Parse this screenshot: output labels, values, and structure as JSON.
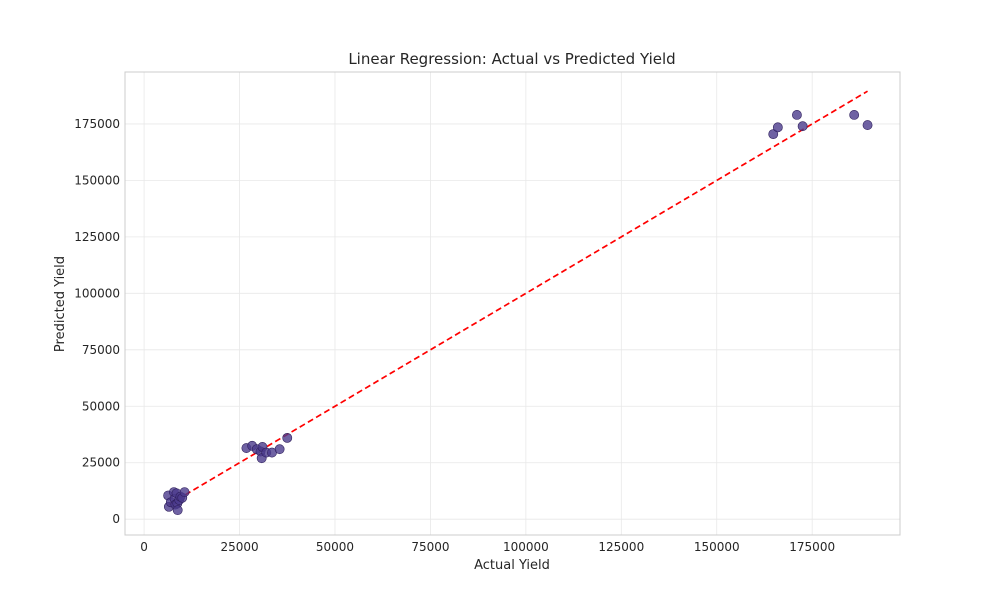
{
  "chart_data": {
    "type": "scatter",
    "title": "Linear Regression: Actual vs Predicted Yield",
    "xlabel": "Actual Yield",
    "ylabel": "Predicted Yield",
    "xlim": [
      -5000,
      198000
    ],
    "ylim": [
      -7000,
      198000
    ],
    "xticks": [
      0,
      25000,
      50000,
      75000,
      100000,
      125000,
      150000,
      175000
    ],
    "yticks": [
      0,
      25000,
      50000,
      75000,
      100000,
      125000,
      150000,
      175000
    ],
    "grid": true,
    "legend": "none",
    "colors": {
      "points": "#4b3b8c",
      "reference_line": "#ff0000"
    },
    "reference_line": {
      "style": "dashed",
      "from": [
        6500,
        6500
      ],
      "to": [
        189500,
        189500
      ]
    },
    "points": [
      {
        "x": 6300,
        "y": 10500
      },
      {
        "x": 6500,
        "y": 5500
      },
      {
        "x": 7000,
        "y": 7500
      },
      {
        "x": 7800,
        "y": 12000
      },
      {
        "x": 8000,
        "y": 9000
      },
      {
        "x": 8200,
        "y": 6500
      },
      {
        "x": 8500,
        "y": 11500
      },
      {
        "x": 8700,
        "y": 7000
      },
      {
        "x": 8800,
        "y": 4000
      },
      {
        "x": 9200,
        "y": 8500
      },
      {
        "x": 9500,
        "y": 10000
      },
      {
        "x": 10000,
        "y": 9500
      },
      {
        "x": 10600,
        "y": 12000
      },
      {
        "x": 26800,
        "y": 31500
      },
      {
        "x": 28300,
        "y": 32500
      },
      {
        "x": 29500,
        "y": 31000
      },
      {
        "x": 30500,
        "y": 30000
      },
      {
        "x": 30800,
        "y": 27000
      },
      {
        "x": 31000,
        "y": 32000
      },
      {
        "x": 32000,
        "y": 29500
      },
      {
        "x": 33500,
        "y": 29500
      },
      {
        "x": 35500,
        "y": 31000
      },
      {
        "x": 37500,
        "y": 36000
      },
      {
        "x": 164800,
        "y": 170500
      },
      {
        "x": 166000,
        "y": 173500
      },
      {
        "x": 171000,
        "y": 179000
      },
      {
        "x": 172500,
        "y": 174000
      },
      {
        "x": 186000,
        "y": 179000
      },
      {
        "x": 189500,
        "y": 174500
      }
    ]
  }
}
